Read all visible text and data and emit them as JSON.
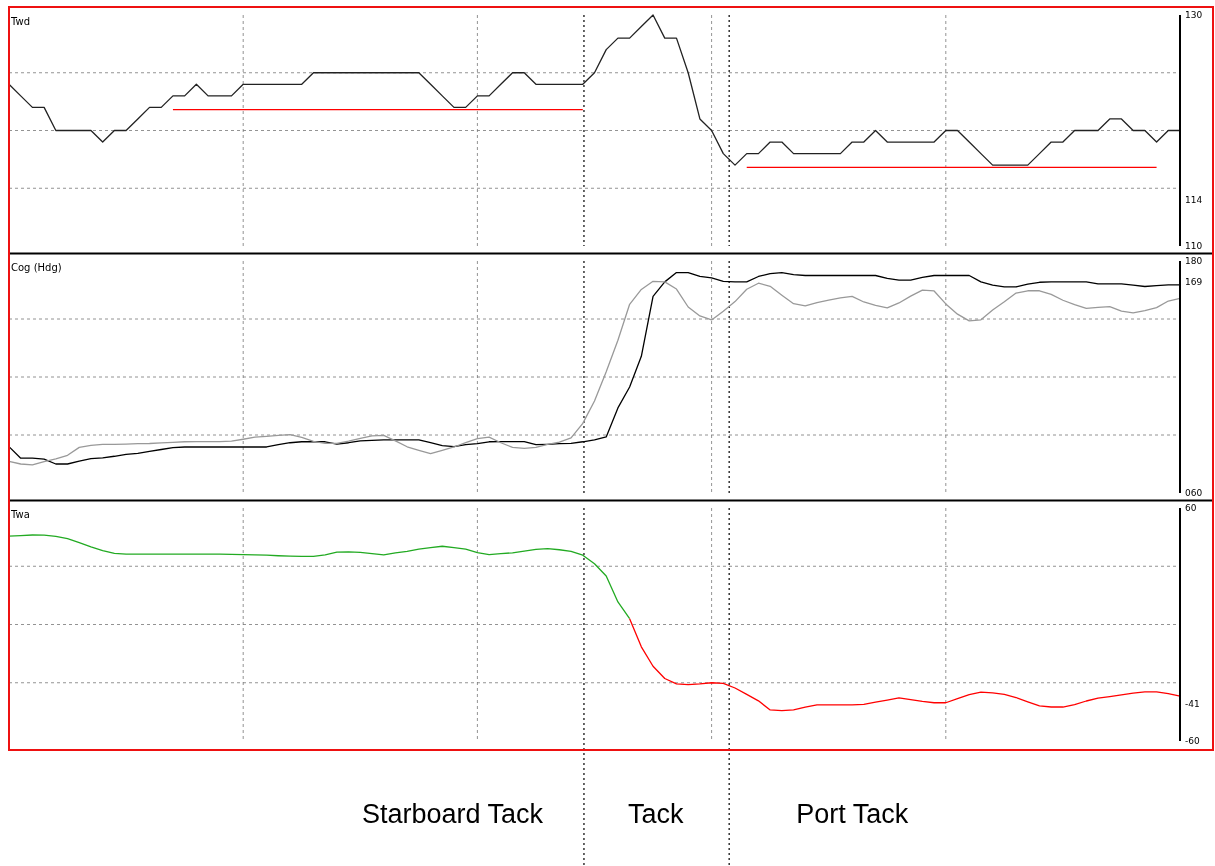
{
  "chart_data": [
    {
      "type": "line",
      "title": "Twd",
      "categories": [
        null,
        null,
        null,
        null,
        null,
        null,
        null,
        null,
        null,
        null,
        null,
        null,
        null,
        null,
        null,
        null,
        null,
        null,
        null,
        null,
        null,
        null,
        null,
        null,
        null,
        null,
        null,
        null,
        null,
        null,
        null,
        null,
        null,
        null,
        null,
        null,
        null,
        null,
        null,
        null,
        null,
        null,
        null,
        null,
        null,
        null,
        null,
        null,
        null,
        null,
        null,
        null,
        null,
        null,
        null,
        null,
        null,
        null,
        null,
        null,
        null,
        null,
        null,
        null,
        null,
        null,
        null,
        null,
        null,
        null,
        null,
        null,
        null,
        null,
        null,
        null,
        null,
        null,
        null,
        null,
        null,
        null,
        null,
        null,
        null,
        null,
        null,
        null,
        null,
        null,
        null,
        null,
        null,
        null,
        null,
        null,
        null,
        null,
        null,
        null,
        null
      ],
      "ylim": [
        110,
        130
      ],
      "yticks": [
        130,
        {
          "value": 125,
          "label": null
        },
        {
          "value": 120,
          "label": null
        },
        {
          "value": 115,
          "label": null
        },
        114,
        110
      ],
      "grid": true,
      "tick_labels": "y",
      "series": [
        {
          "color": "#222222",
          "values": [
            124,
            123,
            122,
            122,
            120,
            120,
            120,
            120,
            119,
            120,
            120,
            121,
            122,
            122,
            123,
            123,
            124,
            123,
            123,
            123,
            124,
            124,
            124,
            124,
            124,
            124,
            125,
            125,
            125,
            125,
            125,
            125,
            125,
            125,
            125,
            125,
            124,
            123,
            122,
            122,
            123,
            123,
            124,
            125,
            125,
            124,
            124,
            124,
            124,
            124,
            125,
            127,
            128,
            128,
            129,
            130,
            128,
            128,
            125,
            121,
            120,
            118,
            117,
            118,
            118,
            119,
            119,
            118,
            118,
            118,
            118,
            118,
            119,
            119,
            120,
            119,
            119,
            119,
            119,
            119,
            120,
            120,
            119,
            118,
            117,
            117,
            117,
            117,
            118,
            119,
            119,
            120,
            120,
            120,
            121,
            121,
            120,
            120,
            119,
            120,
            120
          ]
        },
        {
          "color": "#ff0000",
          "values": [
            null,
            null,
            null,
            null,
            null,
            null,
            null,
            null,
            null,
            null,
            null,
            null,
            null,
            null,
            121.8,
            121.8,
            121.8,
            121.8,
            121.8,
            121.8,
            121.8,
            121.8,
            121.8,
            121.8,
            121.8,
            121.8,
            121.8,
            121.8,
            121.8,
            121.8,
            121.8,
            121.8,
            121.8,
            121.8,
            121.8,
            121.8,
            121.8,
            121.8,
            121.8,
            121.8,
            121.8,
            121.8,
            121.8,
            121.8,
            121.8,
            121.8,
            121.8,
            121.8,
            121.8,
            121.8,
            null,
            null,
            null,
            null,
            null,
            null,
            null,
            null,
            null,
            null,
            null,
            null,
            null,
            null,
            null,
            null,
            null,
            null,
            null,
            null,
            null,
            null,
            null,
            null,
            null,
            null,
            null,
            null,
            null,
            null,
            null,
            null,
            null,
            null,
            null,
            null,
            null,
            null,
            null,
            null,
            null,
            null,
            null,
            null,
            null,
            null,
            null,
            null,
            null,
            null,
            null
          ]
        },
        {
          "color": "#ff0000",
          "values": [
            null,
            null,
            null,
            null,
            null,
            null,
            null,
            null,
            null,
            null,
            null,
            null,
            null,
            null,
            null,
            null,
            null,
            null,
            null,
            null,
            null,
            null,
            null,
            null,
            null,
            null,
            null,
            null,
            null,
            null,
            null,
            null,
            null,
            null,
            null,
            null,
            null,
            null,
            null,
            null,
            null,
            null,
            null,
            null,
            null,
            null,
            null,
            null,
            null,
            null,
            null,
            null,
            null,
            null,
            null,
            null,
            null,
            null,
            null,
            null,
            null,
            null,
            null,
            116.8,
            116.8,
            116.8,
            116.8,
            116.8,
            116.8,
            116.8,
            116.8,
            116.8,
            116.8,
            116.8,
            116.8,
            116.8,
            116.8,
            116.8,
            116.8,
            116.8,
            116.8,
            116.8,
            116.8,
            116.8,
            116.8,
            116.8,
            116.8,
            116.8,
            116.8,
            116.8,
            116.8,
            116.8,
            116.8,
            116.8,
            116.8,
            116.8,
            116.8,
            116.8,
            116.8,
            null,
            null
          ]
        }
      ]
    },
    {
      "type": "line",
      "title": "Cog (Hdg)",
      "categories": [
        null,
        null,
        null,
        null,
        null,
        null,
        null,
        null,
        null,
        null,
        null,
        null,
        null,
        null,
        null,
        null,
        null,
        null,
        null,
        null,
        null,
        null,
        null,
        null,
        null,
        null,
        null,
        null,
        null,
        null,
        null,
        null,
        null,
        null,
        null,
        null,
        null,
        null,
        null,
        null,
        null,
        null,
        null,
        null,
        null,
        null,
        null,
        null,
        null,
        null,
        null,
        null,
        null,
        null,
        null,
        null,
        null,
        null,
        null,
        null,
        null,
        null,
        null,
        null,
        null,
        null,
        null,
        null,
        null,
        null,
        null,
        null,
        null,
        null,
        null,
        null,
        null,
        null,
        null,
        null,
        null,
        null,
        null,
        null,
        null,
        null,
        null,
        null,
        null,
        null,
        null,
        null,
        null,
        null,
        null,
        null,
        null,
        null,
        null,
        null,
        null
      ],
      "ylim": [
        60,
        180
      ],
      "yticks": [
        180,
        169,
        {
          "value": 150,
          "label": null
        },
        {
          "value": 120,
          "label": null
        },
        {
          "value": 90,
          "label": null
        },
        {
          "value": 60,
          "label": "060"
        }
      ],
      "grid": true,
      "tick_labels": "y",
      "series": [
        {
          "color": "#000000",
          "values": [
            84,
            78,
            78,
            77.5,
            75,
            75,
            76.5,
            77.8,
            78.2,
            79,
            80,
            80.5,
            81.5,
            82.5,
            83.5,
            83.8,
            83.8,
            83.8,
            83.8,
            83.8,
            83.8,
            83.8,
            83.8,
            85,
            86,
            86.5,
            86.5,
            86.5,
            85.3,
            86,
            87,
            87.2,
            87.5,
            87.5,
            87.5,
            87.5,
            86,
            84.5,
            84,
            85,
            85.5,
            86.5,
            86.6,
            86.6,
            86.6,
            85,
            85.2,
            85.5,
            85.7,
            86.5,
            87.5,
            89,
            104,
            114.8,
            130.7,
            161.7,
            169.2,
            174,
            174,
            172,
            171.3,
            169.5,
            169.2,
            169.2,
            172,
            173.5,
            174,
            173,
            172.5,
            172.5,
            172.5,
            172.5,
            172.5,
            172.5,
            172.5,
            171,
            170.1,
            170.1,
            171.5,
            172.5,
            172.5,
            172.5,
            172.5,
            169.2,
            167.5,
            166.6,
            166.6,
            168,
            169,
            169.2,
            169.2,
            169.2,
            169.2,
            168.2,
            168.2,
            168.2,
            167.5,
            166.8,
            167.3,
            167.6,
            167.6
          ]
        },
        {
          "color": "#999999",
          "values": [
            76.4,
            75,
            74.5,
            76.2,
            77.6,
            79.5,
            83.6,
            84.6,
            85.1,
            85.2,
            85.3,
            85.5,
            85.6,
            85.9,
            86.2,
            86.5,
            86.6,
            86.6,
            86.6,
            86.8,
            87.8,
            88.9,
            89.3,
            89.8,
            90.2,
            88.8,
            86.7,
            85.7,
            85.7,
            86.8,
            88.3,
            89.5,
            89.8,
            87,
            83.9,
            82.1,
            80.4,
            82.1,
            83.8,
            86,
            88.1,
            88.9,
            86,
            83.6,
            83.1,
            83.6,
            85.2,
            86.3,
            88.5,
            96,
            107.6,
            122.7,
            139,
            157.6,
            165.3,
            169.5,
            169.2,
            165.5,
            156.2,
            151.6,
            149.5,
            154,
            159,
            165.4,
            168.5,
            166.9,
            162.3,
            157.9,
            156.8,
            158.5,
            159.8,
            160.9,
            161.7,
            158.8,
            157,
            155.8,
            158.3,
            161.8,
            164.9,
            164.5,
            157.8,
            152.5,
            149,
            149.6,
            154.7,
            158.9,
            163.4,
            164.6,
            164.6,
            162.7,
            159.7,
            157.4,
            155.5,
            156,
            156.4,
            154.1,
            153.2,
            154.3,
            155.9,
            159.3,
            160.7
          ]
        }
      ]
    },
    {
      "type": "line",
      "title": "Twa",
      "categories": [
        null,
        null,
        null,
        null,
        null,
        null,
        null,
        null,
        null,
        null,
        null,
        null,
        null,
        null,
        null,
        null,
        null,
        null,
        null,
        null,
        null,
        null,
        null,
        null,
        null,
        null,
        null,
        null,
        null,
        null,
        null,
        null,
        null,
        null,
        null,
        null,
        null,
        null,
        null,
        null,
        null,
        null,
        null,
        null,
        null,
        null,
        null,
        null,
        null,
        null,
        null,
        null,
        null,
        null,
        null,
        null,
        null,
        null,
        null,
        null,
        null,
        null,
        null,
        null,
        null,
        null,
        null,
        null,
        null,
        null,
        null,
        null,
        null,
        null,
        null,
        null,
        null,
        null,
        null,
        null,
        null,
        null,
        null,
        null,
        null,
        null,
        null,
        null,
        null,
        null,
        null,
        null,
        null,
        null,
        null,
        null,
        null,
        null,
        null,
        null,
        null
      ],
      "ylim": [
        -60,
        60
      ],
      "yticks": [
        60,
        {
          "value": 30,
          "label": null
        },
        {
          "value": 0,
          "label": null
        },
        {
          "value": -30,
          "label": null
        },
        -41,
        -60
      ],
      "grid": true,
      "tick_labels": "y",
      "annotations": [
        "Starboard Tack",
        "Tack",
        "Port Tack"
      ],
      "series": [
        {
          "color": "#22aa22",
          "values": [
            45.5,
            45.8,
            46.1,
            46,
            45.4,
            44.2,
            42.2,
            40,
            38,
            36.6,
            36.2,
            36.2,
            36.2,
            36.2,
            36.2,
            36.2,
            36.2,
            36.2,
            36.2,
            36.1,
            36,
            35.9,
            35.7,
            35.4,
            35.2,
            35.1,
            35.1,
            35.9,
            37.3,
            37.4,
            37.1,
            36.5,
            35.9,
            36.9,
            37.7,
            38.8,
            39.6,
            40.3,
            39.6,
            38.8,
            37,
            36,
            36.5,
            36.9,
            37.8,
            38.7,
            39.1,
            38.5,
            37.7,
            35.7,
            31.3,
            25,
            11.6,
            3,
            null,
            null,
            null,
            null,
            null,
            null,
            null,
            null,
            null,
            null,
            null,
            null,
            null,
            null,
            null,
            null,
            null,
            null,
            null,
            null,
            null,
            null,
            null,
            null,
            null,
            null,
            null,
            null,
            null,
            null,
            null,
            null,
            null,
            null,
            null,
            null,
            null,
            null,
            null,
            null,
            null,
            null,
            null,
            null,
            null,
            null,
            null
          ]
        },
        {
          "color": "#ff0000",
          "values": [
            null,
            null,
            null,
            null,
            null,
            null,
            null,
            null,
            null,
            null,
            null,
            null,
            null,
            null,
            null,
            null,
            null,
            null,
            null,
            null,
            null,
            null,
            null,
            null,
            null,
            null,
            null,
            null,
            null,
            null,
            null,
            null,
            null,
            null,
            null,
            null,
            null,
            null,
            null,
            null,
            null,
            null,
            null,
            null,
            null,
            null,
            null,
            null,
            null,
            null,
            null,
            null,
            null,
            3,
            -11.5,
            -21.5,
            -27.8,
            -30.6,
            -31,
            -30.6,
            -30,
            -30.3,
            -32.7,
            -36,
            -39.3,
            -44,
            -44.4,
            -44,
            -42.6,
            -41.4,
            -41.4,
            -41.4,
            -41.4,
            -41.1,
            -40,
            -38.9,
            -37.8,
            -38.7,
            -39.6,
            -40.3,
            -40.3,
            -38.2,
            -36.1,
            -34.8,
            -35.2,
            -36,
            -37.6,
            -39.8,
            -41.9,
            -42.5,
            -42.5,
            -41.3,
            -39.4,
            -37.9,
            -37.1,
            -36.2,
            -35.3,
            -34.7,
            -34.7,
            -35.6,
            -36.9
          ]
        }
      ]
    }
  ]
}
